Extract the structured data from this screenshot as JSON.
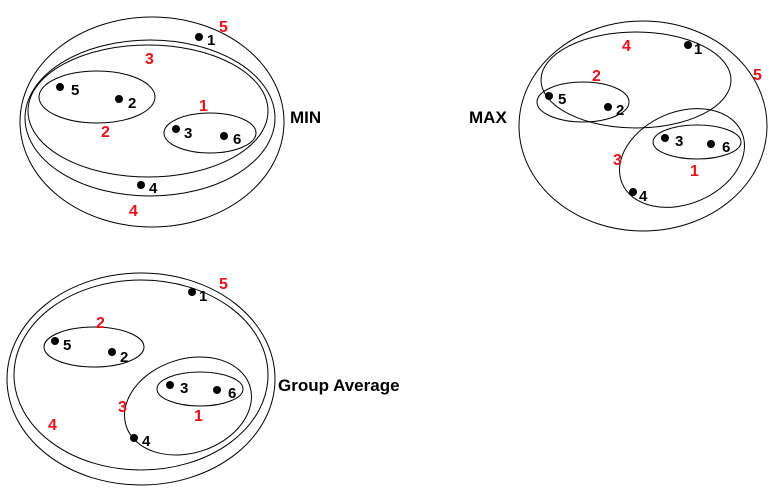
{
  "colors": {
    "ink": "#000000",
    "merge_order": "#e8101a",
    "background": "#ffffff"
  },
  "panels": [
    {
      "id": "min",
      "title": "MIN",
      "points": [
        "1",
        "2",
        "3",
        "4",
        "5",
        "6"
      ],
      "merge_labels": [
        "1",
        "2",
        "3",
        "4",
        "5"
      ]
    },
    {
      "id": "max",
      "title": "MAX",
      "points": [
        "1",
        "2",
        "3",
        "4",
        "5",
        "6"
      ],
      "merge_labels": [
        "1",
        "2",
        "3",
        "4",
        "5"
      ]
    },
    {
      "id": "group-average",
      "title": "Group Average",
      "points": [
        "1",
        "2",
        "3",
        "4",
        "5",
        "6"
      ],
      "merge_labels": [
        "1",
        "2",
        "3",
        "4",
        "5"
      ]
    }
  ]
}
